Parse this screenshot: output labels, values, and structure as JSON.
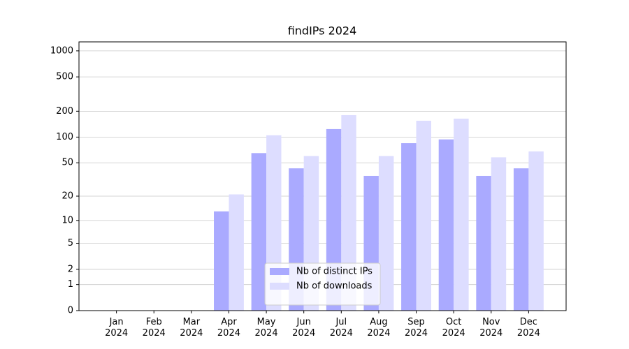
{
  "chart_data": {
    "type": "bar",
    "title": "findIPs 2024",
    "categories": [
      "Jan\n2024",
      "Feb\n2024",
      "Mar\n2024",
      "Apr\n2024",
      "May\n2024",
      "Jun\n2024",
      "Jul\n2024",
      "Aug\n2024",
      "Sep\n2024",
      "Oct\n2024",
      "Nov\n2024",
      "Dec\n2024"
    ],
    "series": [
      {
        "name": "Nb of distinct IPs",
        "color": "#aaaaff",
        "values": [
          0,
          0,
          0,
          13,
          65,
          43,
          124,
          35,
          85,
          94,
          35,
          43
        ]
      },
      {
        "name": "Nb of downloads",
        "color": "#ddddff",
        "values": [
          0,
          0,
          0,
          21,
          105,
          60,
          180,
          60,
          155,
          164,
          58,
          68
        ]
      }
    ],
    "yscale": "log1p",
    "ylim": [
      0,
      1270
    ],
    "yticks": [
      0,
      1,
      2,
      5,
      10,
      20,
      50,
      100,
      200,
      500,
      1000
    ],
    "grid": true,
    "legend": "lower center"
  }
}
